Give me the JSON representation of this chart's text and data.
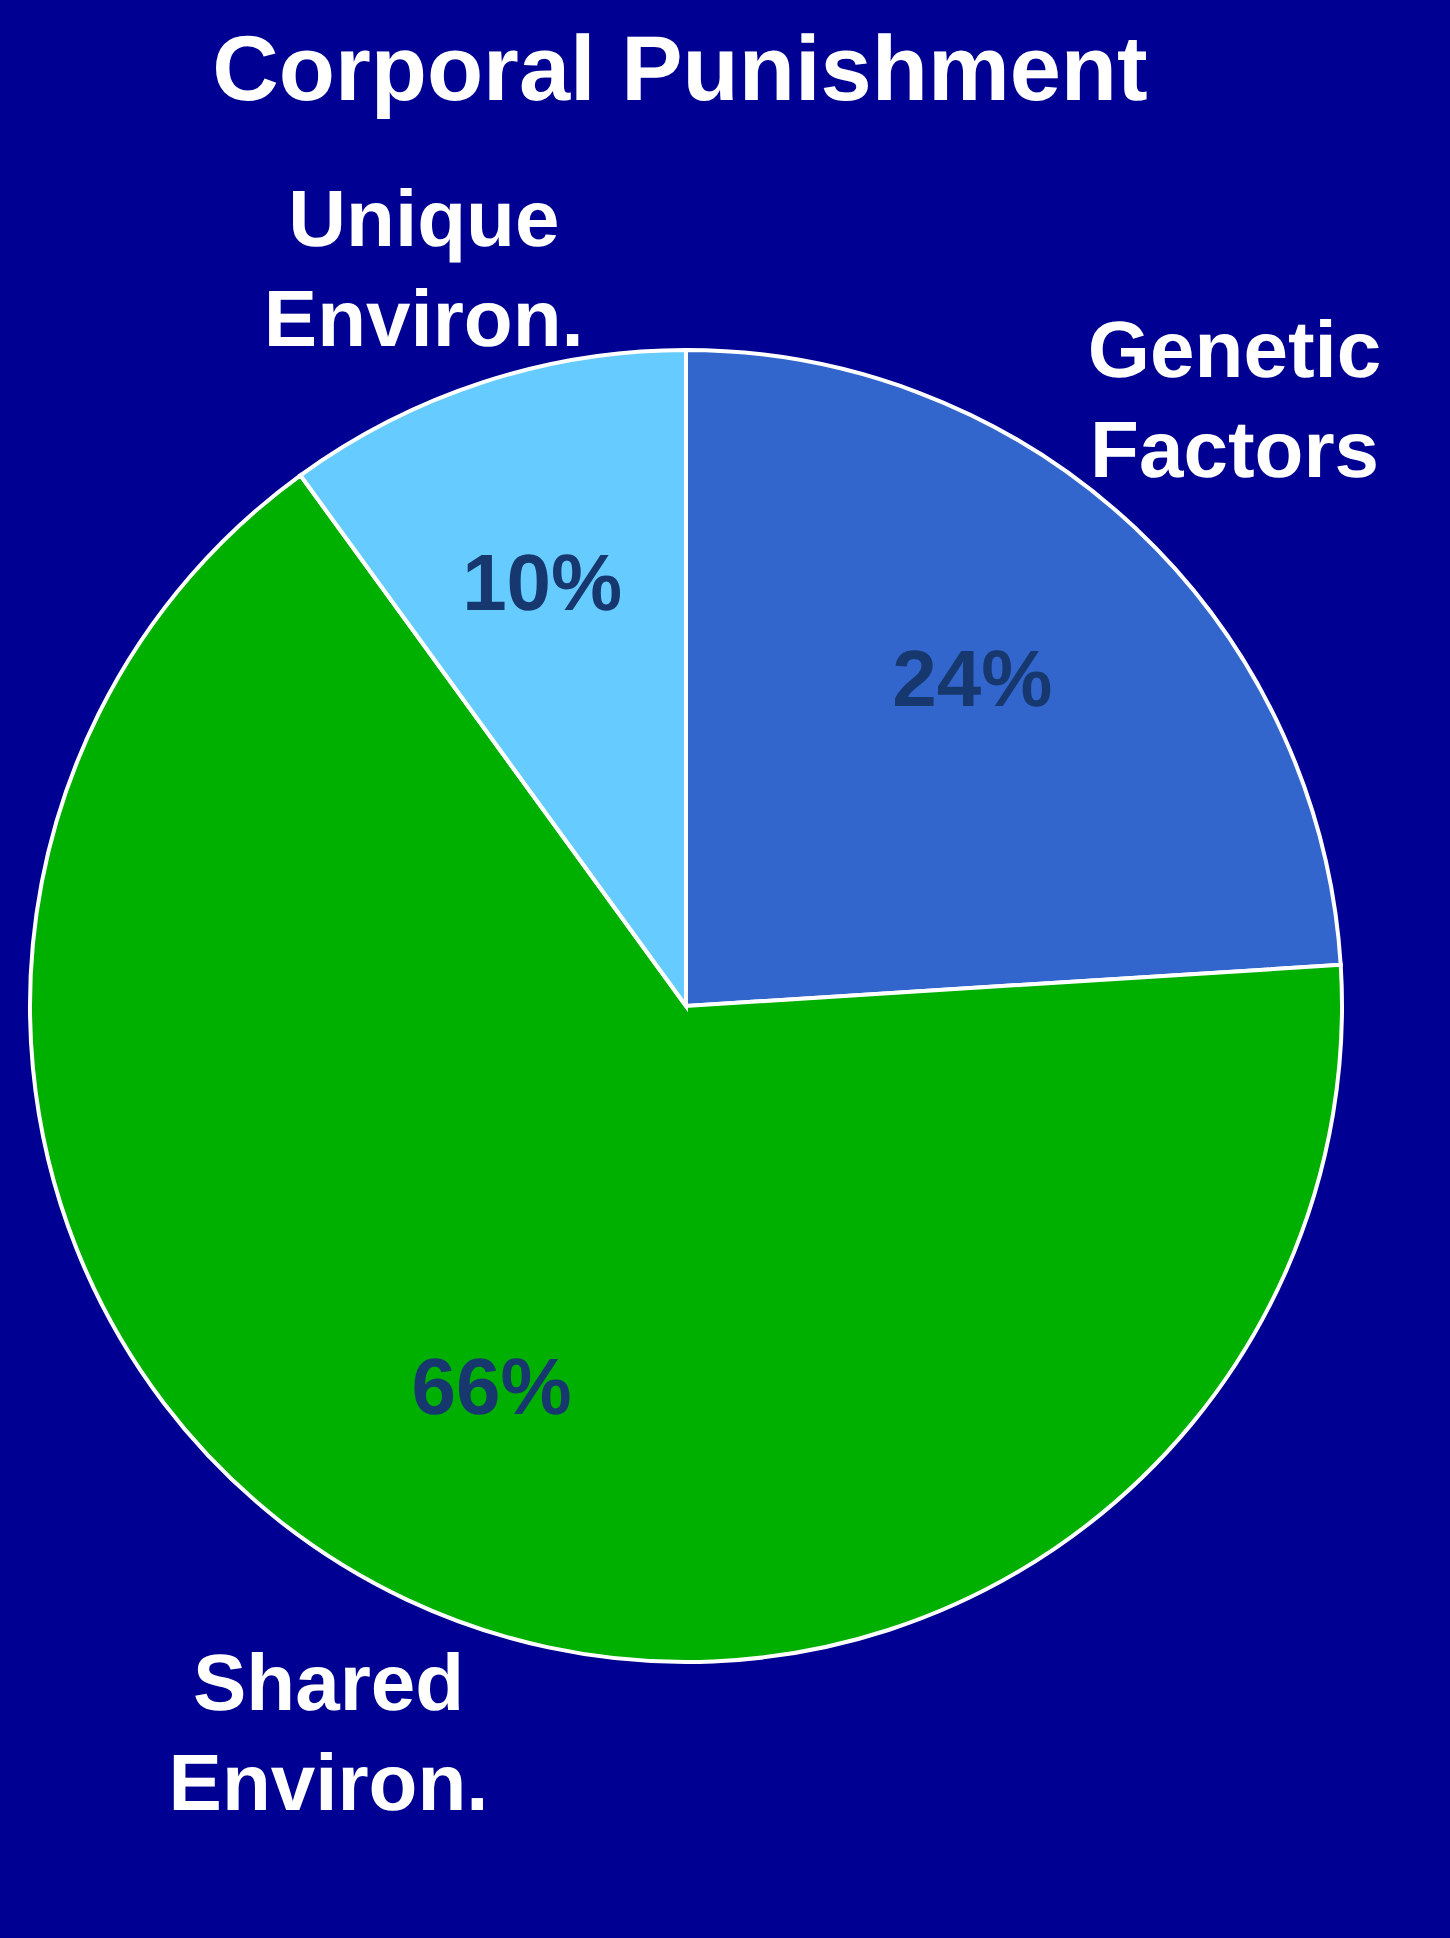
{
  "chart_data": {
    "type": "pie",
    "title": "Corporal Punishment",
    "categories": [
      "Genetic Factors",
      "Shared Environ.",
      "Unique Environ."
    ],
    "values": [
      24,
      66,
      10
    ],
    "colors": [
      "#3366cc",
      "#00b000",
      "#66ccff"
    ],
    "value_labels": [
      "24%",
      "66%",
      "10%"
    ]
  }
}
